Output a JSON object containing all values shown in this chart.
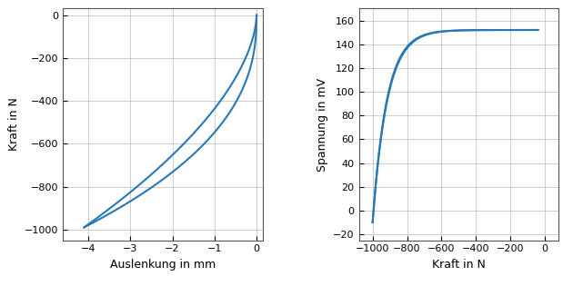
{
  "left_xlabel": "Auslenkung in mm",
  "left_ylabel": "Kraft in N",
  "left_xlim": [
    -4.6,
    0.15
  ],
  "left_ylim": [
    -1050,
    30
  ],
  "left_xticks": [
    -4,
    -3,
    -2,
    -1,
    0
  ],
  "left_yticks": [
    0,
    -200,
    -400,
    -600,
    -800,
    -1000
  ],
  "right_xlabel": "Kraft in N",
  "right_ylabel": "Spannung in mV",
  "right_xlim": [
    -1080,
    80
  ],
  "right_ylim": [
    -25,
    170
  ],
  "right_xticks": [
    -1000,
    -800,
    -600,
    -400,
    -200,
    0
  ],
  "right_yticks": [
    -20,
    0,
    20,
    40,
    60,
    80,
    100,
    120,
    140,
    160
  ],
  "line_color": "#2878b5",
  "background_color": "#ffffff",
  "grid_color": "#b8b8b8",
  "linewidth": 1.5
}
